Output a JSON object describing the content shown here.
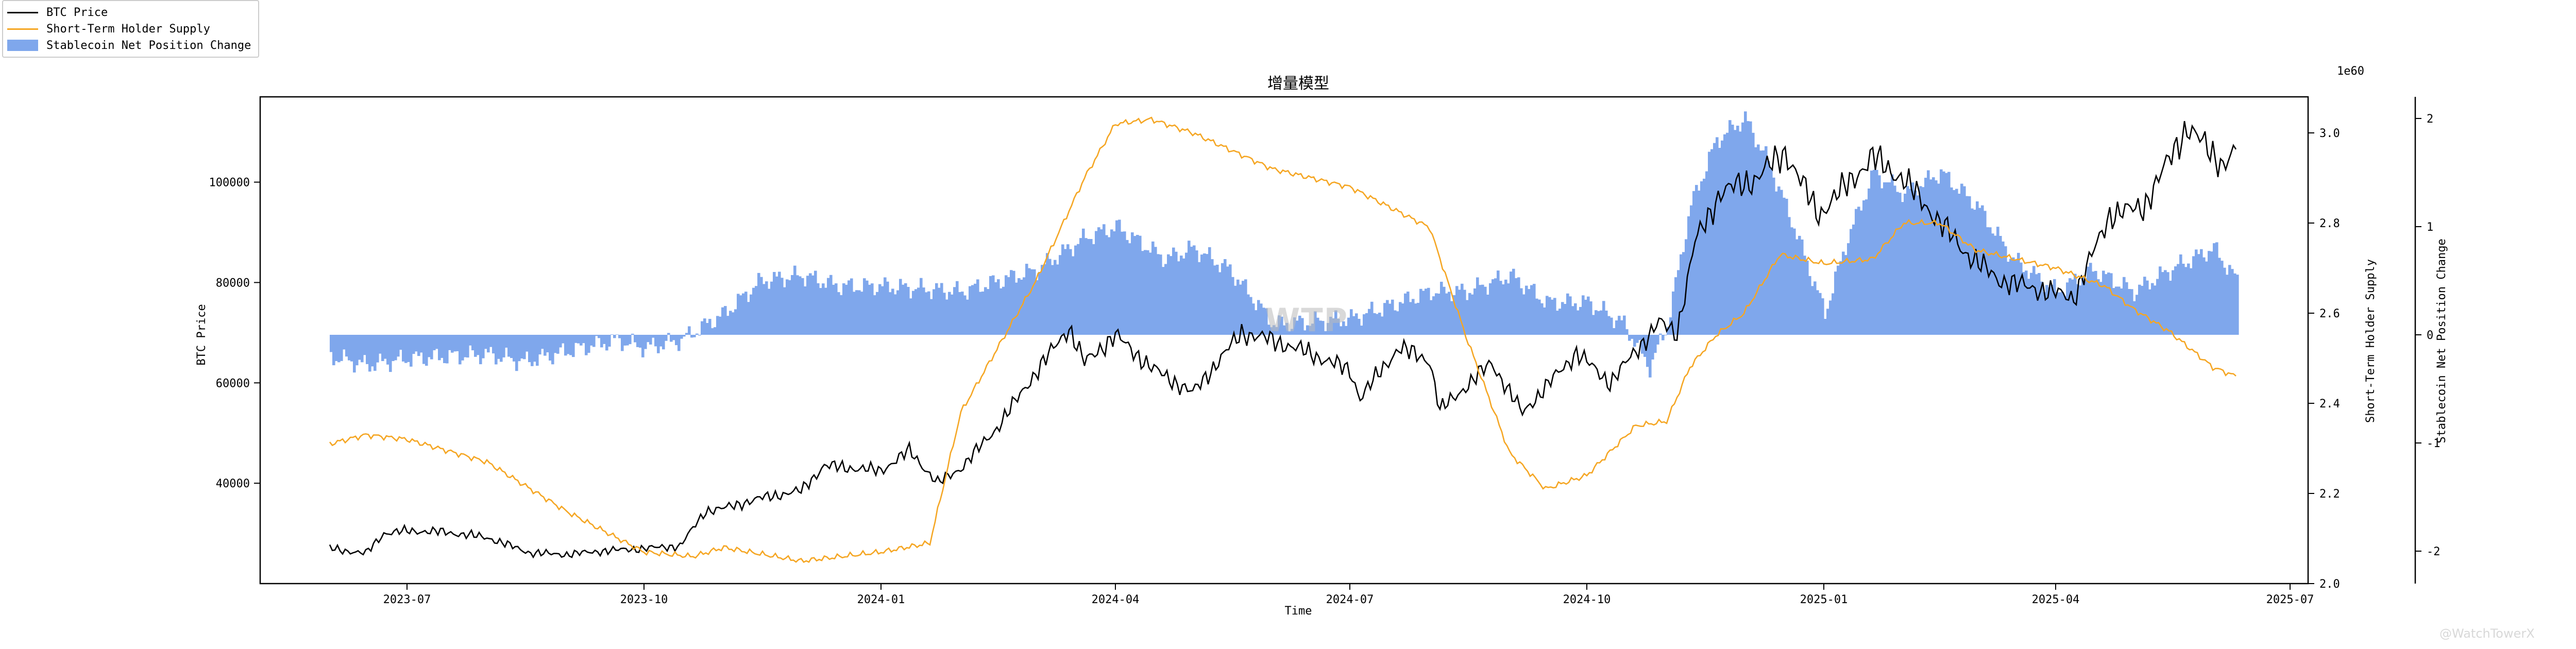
{
  "chart_data": {
    "type": "line",
    "title": "增量模型",
    "xlabel": "Time",
    "ylabel": "BTC Price",
    "y2label": "Short-Term Holder Supply",
    "y3label": "Stablecoin Net Position Change",
    "offset_label": "1e60",
    "grid": false,
    "legend_position": "top-left",
    "x_range": [
      "2023-05-05",
      "2025-07-08"
    ],
    "x_ticks": [
      "2023-07",
      "2023-10",
      "2024-01",
      "2024-04",
      "2024-07",
      "2024-10",
      "2025-01",
      "2025-04",
      "2025-07"
    ],
    "ylim": [
      20000,
      117000
    ],
    "yticks": [
      40000,
      60000,
      80000,
      100000
    ],
    "y2lim": [
      2.0,
      3.08
    ],
    "y2ticks": [
      "2.0",
      "2.2",
      "2.4",
      "2.6",
      "2.8",
      "3.0"
    ],
    "y3lim": [
      -2.3,
      2.2
    ],
    "y3ticks": [
      -2,
      -1,
      0,
      1,
      2
    ],
    "series": [
      {
        "name": "BTC Price",
        "axis": "left",
        "color": "#000000",
        "style": "line",
        "x": [
          "2023-06-01",
          "2023-06-15",
          "2023-06-22",
          "2023-07-01",
          "2023-07-15",
          "2023-08-01",
          "2023-08-18",
          "2023-09-01",
          "2023-09-15",
          "2023-10-01",
          "2023-10-15",
          "2023-10-25",
          "2023-11-01",
          "2023-11-15",
          "2023-12-01",
          "2023-12-10",
          "2024-01-01",
          "2024-01-12",
          "2024-01-23",
          "2024-02-01",
          "2024-02-15",
          "2024-03-01",
          "2024-03-14",
          "2024-03-20",
          "2024-04-01",
          "2024-04-15",
          "2024-05-01",
          "2024-05-20",
          "2024-06-01",
          "2024-06-15",
          "2024-07-01",
          "2024-07-05",
          "2024-07-20",
          "2024-08-01",
          "2024-08-05",
          "2024-08-25",
          "2024-09-06",
          "2024-09-27",
          "2024-10-10",
          "2024-10-29",
          "2024-11-05",
          "2024-11-12",
          "2024-11-22",
          "2024-12-05",
          "2024-12-17",
          "2024-12-30",
          "2025-01-20",
          "2025-02-01",
          "2025-02-25",
          "2025-03-10",
          "2025-04-08",
          "2025-04-22",
          "2025-05-05",
          "2025-05-22",
          "2025-06-05",
          "2025-06-10"
        ],
        "values": [
          27000,
          26000,
          30000,
          30500,
          30300,
          29200,
          26100,
          25800,
          26500,
          27000,
          27500,
          34500,
          35000,
          37000,
          38500,
          43500,
          42500,
          46500,
          40000,
          43000,
          51000,
          62000,
          71000,
          64000,
          69500,
          63000,
          58000,
          70000,
          68500,
          66000,
          62500,
          57000,
          67000,
          64500,
          54500,
          64000,
          54000,
          66000,
          60000,
          72000,
          70000,
          88000,
          98000,
          100500,
          106000,
          93500,
          105000,
          100500,
          86000,
          80500,
          77000,
          93500,
          95000,
          111000,
          103500,
          106000
        ]
      },
      {
        "name": "Short-Term Holder Supply",
        "axis": "right",
        "color": "#f5a623",
        "style": "line",
        "x": [
          "2023-06-01",
          "2023-06-15",
          "2023-07-01",
          "2023-08-01",
          "2023-09-01",
          "2023-10-01",
          "2023-10-20",
          "2023-11-01",
          "2023-12-01",
          "2024-01-01",
          "2024-01-20",
          "2024-02-01",
          "2024-03-01",
          "2024-03-20",
          "2024-04-01",
          "2024-04-15",
          "2024-05-01",
          "2024-06-01",
          "2024-07-01",
          "2024-08-01",
          "2024-08-15",
          "2024-09-01",
          "2024-09-15",
          "2024-10-01",
          "2024-10-20",
          "2024-11-01",
          "2024-11-10",
          "2024-11-20",
          "2024-12-01",
          "2024-12-15",
          "2025-01-01",
          "2025-01-20",
          "2025-02-01",
          "2025-02-15",
          "2025-03-01",
          "2025-04-01",
          "2025-04-20",
          "2025-05-01",
          "2025-05-15",
          "2025-06-01",
          "2025-06-10"
        ],
        "values": [
          2.31,
          2.33,
          2.32,
          2.27,
          2.16,
          2.07,
          2.06,
          2.08,
          2.05,
          2.07,
          2.09,
          2.38,
          2.67,
          2.9,
          3.02,
          3.03,
          3.0,
          2.92,
          2.88,
          2.79,
          2.55,
          2.29,
          2.21,
          2.24,
          2.35,
          2.36,
          2.48,
          2.55,
          2.6,
          2.73,
          2.71,
          2.72,
          2.8,
          2.8,
          2.74,
          2.7,
          2.66,
          2.61,
          2.56,
          2.48,
          2.46
        ]
      },
      {
        "name": "Stablecoin Net Position Change",
        "axis": "right2",
        "color": "#7fa7ec",
        "style": "bar",
        "x": [
          "2023-06-01",
          "2023-06-15",
          "2023-07-01",
          "2023-08-01",
          "2023-08-15",
          "2023-09-01",
          "2023-09-20",
          "2023-10-01",
          "2023-10-15",
          "2023-10-25",
          "2023-11-01",
          "2023-11-15",
          "2023-12-01",
          "2023-12-15",
          "2024-01-01",
          "2024-02-01",
          "2024-03-01",
          "2024-03-20",
          "2024-04-01",
          "2024-04-20",
          "2024-05-01",
          "2024-05-15",
          "2024-06-01",
          "2024-06-15",
          "2024-07-01",
          "2024-07-20",
          "2024-08-01",
          "2024-08-15",
          "2024-09-01",
          "2024-09-15",
          "2024-10-01",
          "2024-10-15",
          "2024-10-25",
          "2024-11-01",
          "2024-11-10",
          "2024-11-20",
          "2024-12-01",
          "2024-12-10",
          "2024-12-20",
          "2025-01-01",
          "2025-01-10",
          "2025-01-20",
          "2025-02-01",
          "2025-02-15",
          "2025-03-01",
          "2025-03-15",
          "2025-04-01",
          "2025-04-15",
          "2025-05-01",
          "2025-05-15",
          "2025-06-01",
          "2025-06-10"
        ],
        "values": [
          -0.2,
          -0.28,
          -0.22,
          -0.18,
          -0.25,
          -0.15,
          -0.05,
          -0.12,
          -0.05,
          0.1,
          0.2,
          0.5,
          0.55,
          0.45,
          0.45,
          0.4,
          0.6,
          0.9,
          1.0,
          0.7,
          0.8,
          0.6,
          0.1,
          0.12,
          0.15,
          0.3,
          0.4,
          0.4,
          0.55,
          0.3,
          0.3,
          0.1,
          -0.3,
          0.1,
          1.2,
          1.8,
          2.0,
          1.6,
          1.0,
          0.2,
          0.9,
          1.5,
          1.3,
          1.5,
          1.2,
          0.7,
          0.4,
          0.6,
          0.4,
          0.6,
          0.8,
          0.5
        ]
      }
    ]
  },
  "watermark": {
    "center": "WTP",
    "corner": "@WatchTowerX"
  }
}
